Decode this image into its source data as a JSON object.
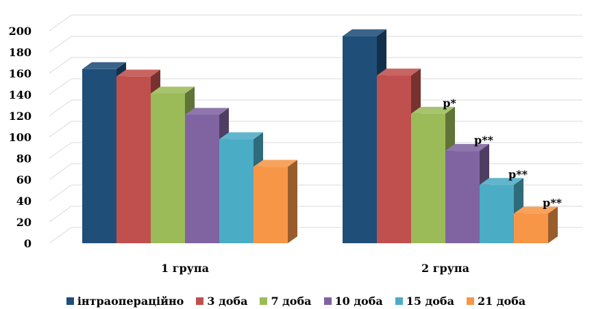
{
  "chart_data": {
    "type": "bar",
    "style": "3d-clustered-column",
    "categories": [
      "1 група",
      "2 група"
    ],
    "series": [
      {
        "name": "інтраопераційно",
        "values": [
          164,
          195
        ],
        "color": "#1F4E79"
      },
      {
        "name": "3 доба",
        "values": [
          157,
          158
        ],
        "color": "#C0504D"
      },
      {
        "name": "7 доба",
        "values": [
          141,
          122
        ],
        "color": "#9BBB59"
      },
      {
        "name": "10 доба",
        "values": [
          121,
          87
        ],
        "color": "#8064A2"
      },
      {
        "name": "15 доба",
        "values": [
          98,
          55
        ],
        "color": "#4BACC6"
      },
      {
        "name": "21 доба",
        "values": [
          72,
          28
        ],
        "color": "#F79646"
      }
    ],
    "annotations": [
      {
        "category": 1,
        "series": 2,
        "text": "p*"
      },
      {
        "category": 1,
        "series": 3,
        "text": "p**"
      },
      {
        "category": 1,
        "series": 4,
        "text": "p**"
      },
      {
        "category": 1,
        "series": 5,
        "text": "p**"
      }
    ],
    "ylim": [
      0,
      200
    ],
    "yticks": [
      0,
      20,
      40,
      60,
      80,
      100,
      120,
      140,
      160,
      180,
      200
    ],
    "grid": true,
    "legend": "bottom"
  }
}
